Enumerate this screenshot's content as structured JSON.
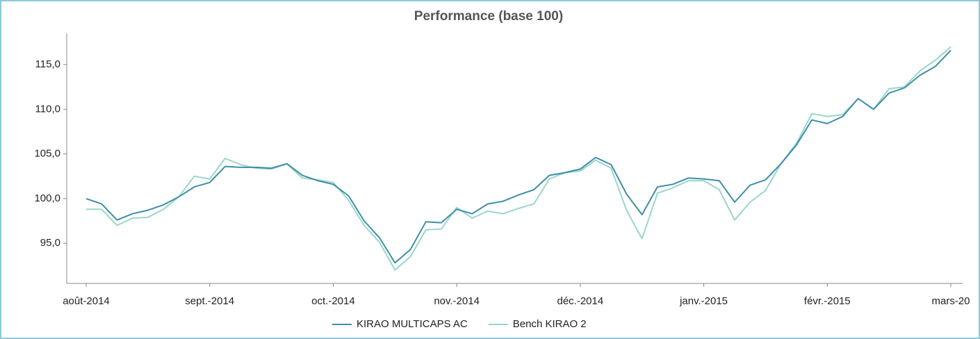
{
  "chart_data": {
    "type": "line",
    "title": "Performance (base 100)",
    "categories": [
      "août-2014",
      null,
      null,
      null,
      null,
      null,
      null,
      null,
      "sept.-2014",
      null,
      null,
      null,
      null,
      null,
      null,
      null,
      "oct.-2014",
      null,
      null,
      null,
      null,
      null,
      null,
      null,
      "nov.-2014",
      null,
      null,
      null,
      null,
      null,
      null,
      null,
      "déc.-2014",
      null,
      null,
      null,
      null,
      null,
      null,
      null,
      "janv.-2015",
      null,
      null,
      null,
      null,
      null,
      null,
      null,
      "févr.-2015",
      null,
      null,
      null,
      null,
      null,
      null,
      null,
      "mars-20"
    ],
    "series": [
      {
        "name": "KIRAO MULTICAPS AC",
        "color": "#3d8ea8",
        "values": [
          100.0,
          99.4,
          97.6,
          98.3,
          98.7,
          99.3,
          100.2,
          101.3,
          101.8,
          103.6,
          103.5,
          103.5,
          103.4,
          103.9,
          102.6,
          102.0,
          101.6,
          100.3,
          97.5,
          95.6,
          92.8,
          94.3,
          97.4,
          97.3,
          98.8,
          98.3,
          99.4,
          99.7,
          100.4,
          101.0,
          102.6,
          102.9,
          103.3,
          104.6,
          103.8,
          100.5,
          98.2,
          101.3,
          101.6,
          102.3,
          102.2,
          102.0,
          99.6,
          101.5,
          102.1,
          103.9,
          106.0,
          108.8,
          108.4,
          109.2,
          111.2,
          110.0,
          111.8,
          112.4,
          113.8,
          114.8,
          116.6
        ]
      },
      {
        "name": "Bench KIRAO 2",
        "color": "#99d6cc",
        "values": [
          98.8,
          98.8,
          97.0,
          97.8,
          97.9,
          98.8,
          100.2,
          102.5,
          102.2,
          104.5,
          103.8,
          103.4,
          103.3,
          103.9,
          102.3,
          102.1,
          101.8,
          99.8,
          97.0,
          95.1,
          92.0,
          93.5,
          96.5,
          96.6,
          99.0,
          97.8,
          98.6,
          98.3,
          98.9,
          99.4,
          102.2,
          102.9,
          103.1,
          104.3,
          103.4,
          98.7,
          95.5,
          100.6,
          101.2,
          102.0,
          102.0,
          101.0,
          97.6,
          99.6,
          100.9,
          103.9,
          106.2,
          109.5,
          109.2,
          109.4,
          111.2,
          110.0,
          112.3,
          112.5,
          114.3,
          115.5,
          117.0
        ]
      }
    ],
    "ylim": [
      90.5,
      118.5
    ],
    "yticks": [
      {
        "value": 95,
        "label": "95,0"
      },
      {
        "value": 100,
        "label": "100,0"
      },
      {
        "value": 105,
        "label": "105,0"
      },
      {
        "value": 110,
        "label": "110,0"
      },
      {
        "value": 115,
        "label": "115,0"
      }
    ],
    "grid": false,
    "legend": "bottom"
  }
}
